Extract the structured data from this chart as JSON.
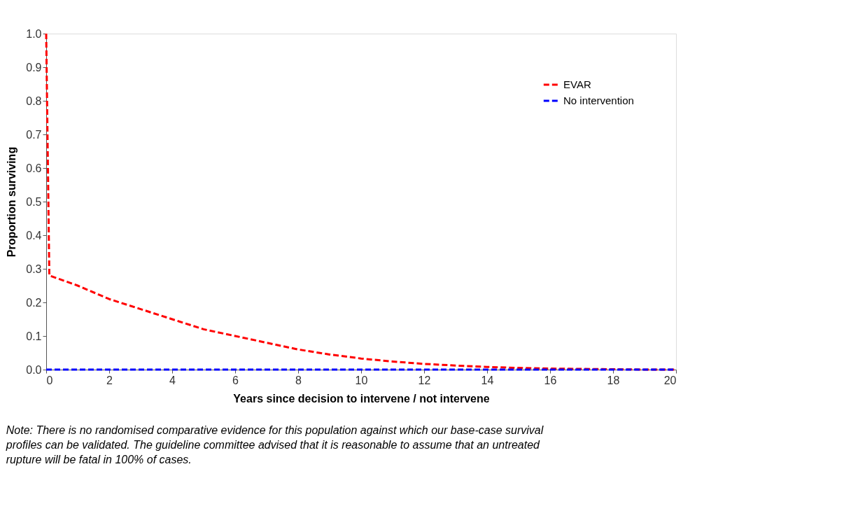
{
  "chart_data": {
    "type": "line",
    "xlabel": "Years since decision to intervene / not intervene",
    "ylabel": "Proportion surviving",
    "xlim": [
      0,
      20
    ],
    "xticks": [
      0,
      2,
      4,
      6,
      8,
      10,
      12,
      14,
      16,
      18,
      20
    ],
    "ylim": [
      0,
      1.0
    ],
    "yticks": [
      {
        "value": 0,
        "label": "0.0"
      },
      0.1,
      0.2,
      0.3,
      0.4,
      0.5,
      0.6,
      0.7,
      0.8,
      0.9,
      {
        "value": 1,
        "label": "1.0"
      }
    ],
    "grid": false,
    "legend": "top right",
    "line_style": "dashed",
    "marker": "none",
    "series": [
      {
        "name": "EVAR",
        "color": "#ff0000",
        "x": [
          0,
          0.1,
          1,
          2,
          3,
          4,
          5,
          6,
          7,
          8,
          9,
          10,
          11,
          12,
          13,
          14,
          15,
          16,
          17,
          18,
          19,
          20
        ],
        "values": [
          1.0,
          0.28,
          0.25,
          0.21,
          0.18,
          0.15,
          0.12,
          0.1,
          0.08,
          0.06,
          0.045,
          0.033,
          0.024,
          0.017,
          0.012,
          0.008,
          0.005,
          0.003,
          0.002,
          0.001,
          0.0,
          0.0
        ]
      },
      {
        "name": "No intervention",
        "color": "#0000ff",
        "x": [
          0,
          20
        ],
        "values": [
          0,
          0
        ]
      }
    ],
    "annotations": [
      "Note: There is no randomised comparative evidence for this population against which our base-case survival profiles can be validated. The guideline committee advised that it is reasonable to assume that an untreated rupture will be fatal in 100% of cases."
    ]
  }
}
